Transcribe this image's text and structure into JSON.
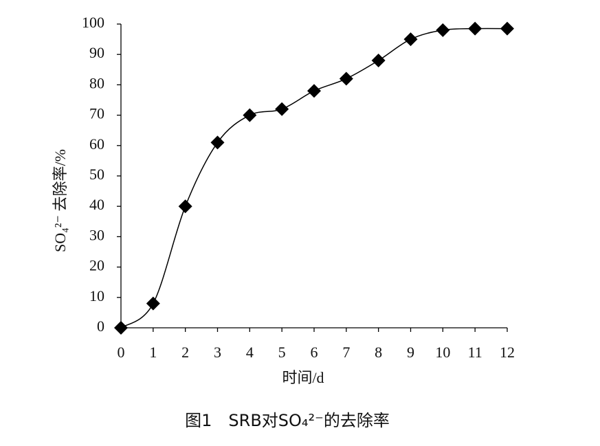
{
  "chart_data": {
    "type": "line",
    "caption": "图1　SRB对SO₄²⁻的去除率",
    "xlabel": "时间/d",
    "ylabel": "SO₄²⁻ 去除率/%",
    "x": [
      0,
      1,
      2,
      3,
      4,
      5,
      6,
      7,
      8,
      9,
      10,
      11,
      12
    ],
    "values": [
      0,
      8,
      40,
      61,
      70,
      72,
      78,
      82,
      88,
      95,
      98,
      98.5,
      98.5
    ],
    "color": "#000000",
    "marker": "diamond",
    "smooth": true,
    "xlim": [
      0,
      12
    ],
    "xticks": [
      0,
      1,
      2,
      3,
      4,
      5,
      6,
      7,
      8,
      9,
      10,
      11,
      12
    ],
    "ylim": [
      0,
      100
    ],
    "yticks": [
      0,
      10,
      20,
      30,
      40,
      50,
      60,
      70,
      80,
      90,
      100
    ],
    "grid": false
  }
}
